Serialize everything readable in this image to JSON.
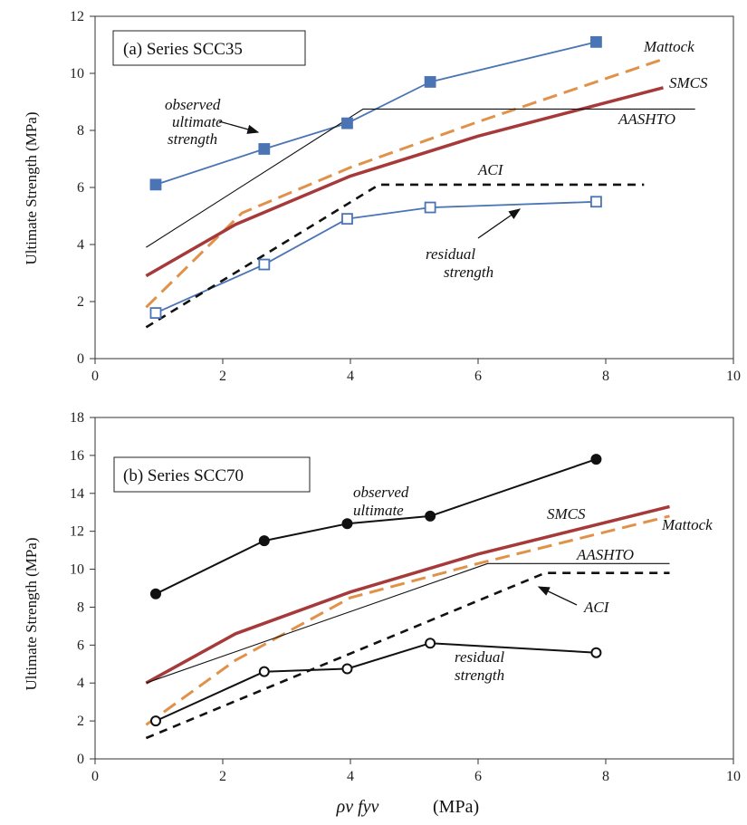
{
  "figure": {
    "xlabel_main": "ρv fyv",
    "xlabel_unit": "(MPa)",
    "ylabel": "Ultimate Strength (MPa)"
  },
  "colors": {
    "blue": "#4a74b4",
    "red_brown": "#a63a3a",
    "orange": "#e0924a",
    "black": "#111111"
  },
  "chart_data": [
    {
      "type": "line",
      "title": "(a) Series SCC35",
      "xlabel": "ρv fyv (MPa)",
      "ylabel": "Ultimate Strength (MPa)",
      "xlim": [
        0,
        10
      ],
      "ylim": [
        0,
        12
      ],
      "xticks": [
        0,
        2,
        4,
        6,
        8,
        10
      ],
      "yticks": [
        0,
        2,
        4,
        6,
        8,
        10,
        12
      ],
      "grid": false,
      "series": [
        {
          "name": "observed ultimate strength",
          "style": "blue-filled-square",
          "x": [
            0.95,
            2.65,
            3.95,
            5.25,
            7.85
          ],
          "y": [
            6.1,
            7.35,
            8.25,
            9.7,
            11.1
          ]
        },
        {
          "name": "residual strength",
          "style": "blue-open-square",
          "x": [
            0.95,
            2.65,
            3.95,
            5.25,
            7.85
          ],
          "y": [
            1.6,
            3.3,
            4.9,
            5.3,
            5.5
          ]
        },
        {
          "name": "Mattock",
          "style": "orange-dashed",
          "x": [
            0.8,
            2.3,
            4.0,
            6.0,
            8.9
          ],
          "y": [
            1.8,
            5.1,
            6.7,
            8.3,
            10.5
          ]
        },
        {
          "name": "SMCS",
          "style": "red-solid-thick",
          "x": [
            0.8,
            2.2,
            4.0,
            6.0,
            8.9
          ],
          "y": [
            2.9,
            4.7,
            6.4,
            7.8,
            9.5
          ]
        },
        {
          "name": "AASHTO",
          "style": "black-thin",
          "x": [
            0.8,
            4.2,
            9.4
          ],
          "y": [
            3.9,
            8.75,
            8.75
          ]
        },
        {
          "name": "ACI",
          "style": "black-dashed",
          "x": [
            0.8,
            4.45,
            8.6
          ],
          "y": [
            1.1,
            6.1,
            6.1
          ]
        }
      ],
      "annotations": [
        {
          "lines": [
            "observed",
            "ultimate",
            "strength"
          ]
        },
        {
          "text": "Mattock"
        },
        {
          "text": "SMCS"
        },
        {
          "text": "AASHTO"
        },
        {
          "text": "ACI"
        },
        {
          "lines": [
            "residual",
            "strength"
          ]
        }
      ]
    },
    {
      "type": "line",
      "title": "(b) Series SCC70",
      "xlabel": "ρv fyv (MPa)",
      "ylabel": "Ultimate Strength (MPa)",
      "xlim": [
        0,
        10
      ],
      "ylim": [
        0,
        18
      ],
      "xticks": [
        0,
        2,
        4,
        6,
        8,
        10
      ],
      "yticks": [
        0,
        2,
        4,
        6,
        8,
        10,
        12,
        14,
        16,
        18
      ],
      "grid": false,
      "series": [
        {
          "name": "observed ultimate",
          "style": "black-filled-circle",
          "x": [
            0.95,
            2.65,
            3.95,
            5.25,
            7.85
          ],
          "y": [
            8.7,
            11.5,
            12.4,
            12.8,
            15.8
          ]
        },
        {
          "name": "residual strength",
          "style": "black-open-circle",
          "x": [
            0.95,
            2.65,
            3.95,
            5.25,
            7.85
          ],
          "y": [
            2.0,
            4.6,
            4.75,
            6.1,
            5.6
          ]
        },
        {
          "name": "SMCS",
          "style": "red-solid-thick",
          "x": [
            0.8,
            2.2,
            4.0,
            6.0,
            9.0
          ],
          "y": [
            4.0,
            6.6,
            8.8,
            10.8,
            13.3
          ]
        },
        {
          "name": "Mattock",
          "style": "orange-dashed",
          "x": [
            0.8,
            2.2,
            4.0,
            6.0,
            9.0
          ],
          "y": [
            1.8,
            5.2,
            8.5,
            10.3,
            12.8
          ]
        },
        {
          "name": "AASHTO",
          "style": "black-thin",
          "x": [
            0.8,
            6.15,
            9.0
          ],
          "y": [
            4.0,
            10.3,
            10.3
          ]
        },
        {
          "name": "ACI",
          "style": "black-dashed",
          "x": [
            0.8,
            7.05,
            9.0
          ],
          "y": [
            1.1,
            9.8,
            9.8
          ]
        }
      ],
      "annotations": [
        {
          "lines": [
            "observed",
            "ultimate"
          ]
        },
        {
          "text": "SMCS"
        },
        {
          "text": "Mattock"
        },
        {
          "text": "AASHTO"
        },
        {
          "text": "ACI"
        },
        {
          "lines": [
            "residual",
            "strength"
          ]
        }
      ]
    }
  ]
}
